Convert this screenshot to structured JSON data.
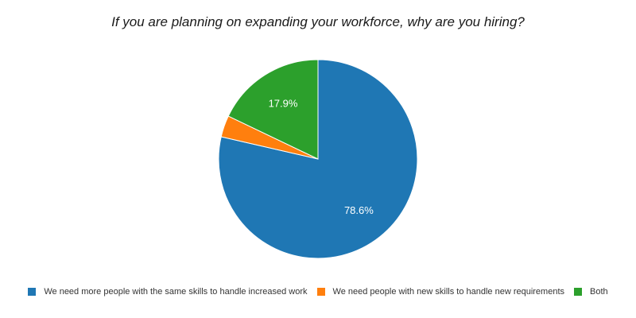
{
  "chart_data": {
    "type": "pie",
    "title": "If you are planning on expanding your workforce, why are you hiring?",
    "categories": [
      "We need more people with the same skills to handle increased work",
      "We need people with new skills to handle new requirements",
      "Both"
    ],
    "values": [
      78.6,
      3.5,
      17.9
    ],
    "data_labels": [
      "78.6%",
      "",
      "17.9%"
    ],
    "colors": [
      "#1f77b4",
      "#ff7f0e",
      "#2ca02c"
    ],
    "legend_position": "bottom",
    "start_angle": "top, clockwise"
  }
}
